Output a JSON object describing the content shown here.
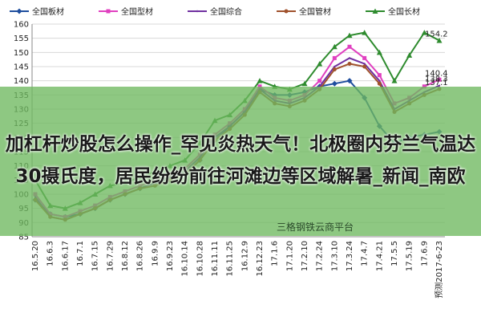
{
  "chart_data": {
    "type": "line",
    "categories": [
      "16.5.20",
      "16.6.3",
      "16.6.17",
      "16.7.1",
      "16.7.15",
      "16.7.29",
      "16.8.12",
      "16.8.26",
      "16.9.9",
      "16.9.23",
      "16.10.14",
      "16.10.28",
      "16.11.11",
      "16.11.25",
      "16.12.9",
      "16.12.23",
      "17.1.6",
      "17.1.20",
      "17.2.10",
      "17.2.24",
      "17.3.10",
      "17.3.24",
      "17.4.7",
      "17.4.21",
      "17.5.5",
      "17.5.19",
      "17.6.9",
      "预测2017-6-23"
    ],
    "series": [
      {
        "name": "全国板材",
        "color": "#1f4e9e",
        "marker": "diamond",
        "label_last": false,
        "values": [
          98,
          93,
          92,
          93,
          95,
          98,
          100,
          102,
          104,
          105,
          107,
          112,
          119,
          124,
          129,
          137,
          135,
          135,
          136,
          138,
          139,
          140,
          134,
          124,
          118,
          120,
          121,
          122
        ]
      },
      {
        "name": "全国型材",
        "color": "#e040c0",
        "marker": "square",
        "label_last": true,
        "values": [
          100,
          93,
          92,
          94,
          96,
          99,
          101,
          103,
          105,
          107,
          109,
          114,
          121,
          125,
          130,
          138,
          134,
          133,
          135,
          140,
          148,
          152,
          148,
          142,
          132,
          134,
          138,
          140.4
        ]
      },
      {
        "name": "全国综合",
        "color": "#7030a0",
        "marker": "none",
        "label_last": true,
        "values": [
          99,
          92,
          91,
          93,
          95,
          98,
          100,
          102,
          104,
          106,
          108,
          113,
          120,
          124,
          129,
          137,
          133,
          132,
          134,
          138,
          145,
          148,
          146,
          140,
          130,
          133,
          136,
          138.3
        ]
      },
      {
        "name": "全国管材",
        "color": "#a0522d",
        "marker": "circle",
        "label_last": true,
        "values": [
          98,
          92,
          91,
          93,
          95,
          98,
          100,
          102,
          103,
          105,
          107,
          112,
          119,
          123,
          128,
          136,
          132,
          131,
          133,
          137,
          144,
          146,
          145,
          139,
          129,
          132,
          135,
          137.1
        ]
      },
      {
        "name": "全国长材",
        "color": "#2e8b2e",
        "marker": "triangle",
        "label_last": true,
        "values": [
          105,
          96,
          95,
          97,
          100,
          103,
          104,
          106,
          108,
          110,
          112,
          118,
          126,
          128,
          133,
          140,
          138,
          137,
          139,
          146,
          152,
          156,
          157,
          150,
          140,
          149,
          157,
          154.2
        ]
      }
    ],
    "ylim": [
      85,
      160
    ],
    "yticks": [
      85,
      90,
      95,
      100,
      105,
      110,
      115,
      120,
      125,
      130,
      135,
      140,
      145,
      150,
      155,
      160
    ],
    "grid": true
  },
  "overlay": {
    "text": "加杠杆炒股怎么操作_罕见炎热天气！北极圈内芬兰气温达30摄氏度，居民纷纷前往河滩边等区域解暑_新闻_南欧",
    "watermark": "三格钢铁云商平台"
  }
}
